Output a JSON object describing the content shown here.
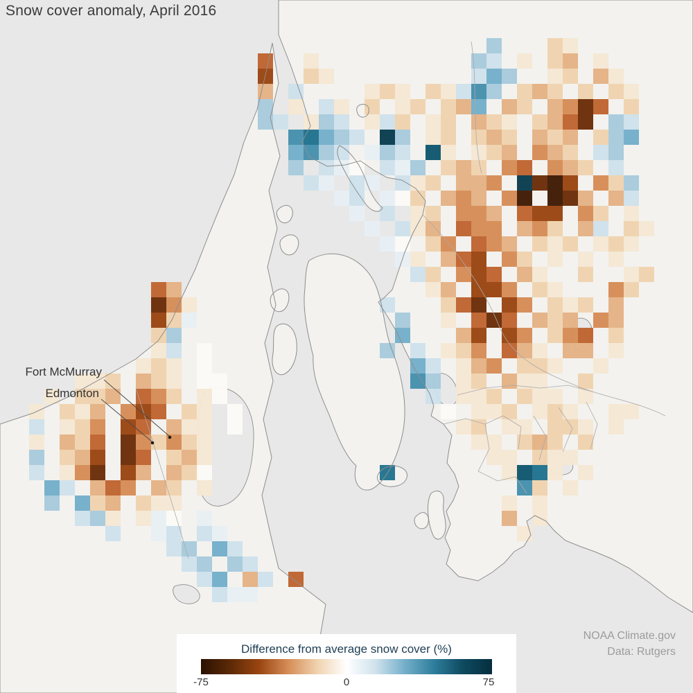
{
  "title": "Snow cover anomaly, April 2016",
  "map": {
    "city_labels": [
      {
        "name": "Fort McMurray"
      },
      {
        "name": "Edmonton"
      }
    ]
  },
  "legend": {
    "label": "Difference from average snow cover (%)",
    "ticks": [
      "-75",
      "0",
      "75"
    ],
    "gradient": [
      "#2a1202",
      "#5c2906",
      "#9a4511",
      "#d68d57",
      "#f0d3af",
      "#ffffff",
      "#cfe2ec",
      "#74afca",
      "#2e7e9c",
      "#0e4a60",
      "#062e3e"
    ]
  },
  "attribution": {
    "line1": "NOAA Climate.gov",
    "line2": "Data: Rutgers"
  },
  "chart_data": {
    "type": "heatmap",
    "title": "Snow cover anomaly, April 2016",
    "units": "percent difference from average snow cover",
    "scale_range": [
      -75,
      75
    ],
    "cell_size": 22,
    "origin": [
      20,
      55
    ],
    "palette": {
      "1": "#f6e8d4",
      "2": "#f0d3af",
      "3": "#e5b285",
      "4": "#d68d57",
      "5": "#bf6430",
      "6": "#9a4511",
      "7": "#6b2d07",
      "8": "#3f1a04",
      "a": "#e8f0f5",
      "b": "#cfe2ec",
      "c": "#a8cbdd",
      "d": "#74afca",
      "e": "#4690ae",
      "f": "#20728f",
      "g": "#10566e",
      "h": "#083c4f",
      "w": "#fcfbf8"
    },
    "palette_anomaly_pct": {
      "1": -8,
      "2": -18,
      "3": -30,
      "4": -42,
      "5": -55,
      "6": -65,
      "7": -75,
      "8": -80,
      "a": 8,
      "b": 18,
      "c": 30,
      "d": 42,
      "e": 55,
      "f": 65,
      "g": 72,
      "h": 80,
      "w": 0
    },
    "grid": [
      "...............................c...21.......",
      "................5..1..........cb.1.23.1.....",
      "................6..21.........bdc..12.31....",
      "................3.b....121.21bec.232.2.21...",
      "................c.1.b1.2.12.23d.32.3475.2...",
      "................cb.1cb.1b2.12.321.2357.cb...",
      "..................efdcb.hc.12.232.323.2cd...",
      "..................decb.acb.g1.123.432.bc....",
      "..................c.baw.bac.232.45.432.b....",
      "...................ba.ba.b12.334.h786.42c...",
      ".....................ab.aw2.343.48.873.3b...",
      "......................a.b.12.443.566.42.1...",
      ".......................a.b13.544.342.3b.21..",
      "........................aw.24.543.212.121...",
      ".........................a1.356.42.1.1.1....",
      "..........................b2.465.31..2..12..",
      ".........53................13.664.21...42...",
      ".........741............b...257.64.212.3....",
      ".........62a.............c..1.575.323.43....",
      ".........2c..............d...36.64.245.2....",
      ".........1b.w...........c.b.124.531.33.1....",
      "........121.w.............db.134.221..1.....",
      "....112.321.ww............ec.12.311..2......",
      "..1.223.542.1w.............b.112.211.1......",
      ".1.213.465.21.w.............w.112.121..11...",
      ".b.124.65.311.w..............12.11.221.1....",
      ".1.325.742421.................11.232.2......",
      ".c.236.75.231..................11.211.......",
      ".b.147.63.32w...........f.......1gf1.1......",
      "..db.354.32.1....................e2.1.......",
      "..c.d23.211.....................1.1.........",
      "....bc1.1aw.a...................3.1.........",
      "......b..ab.ba...................1..........",
      "..........bc.db.............................",
      "...........bc.cb............................",
      "............bd.3b.5.........................",
      ".............baa............................",
      "............................................"
    ]
  }
}
